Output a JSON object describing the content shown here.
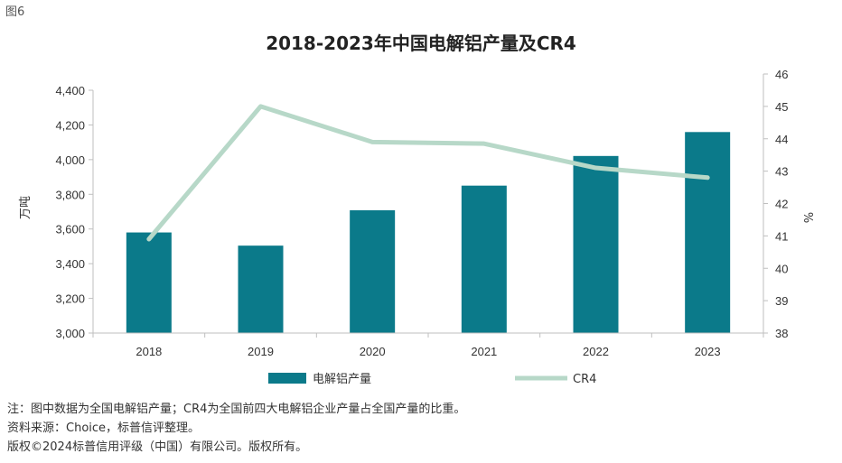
{
  "figure_label": "图6",
  "colors": {
    "bar": "#0b7a8a",
    "line": "#b7d8c8",
    "axis": "#bfbfbf"
  },
  "chart_data": {
    "type": "bar+line",
    "title": "2018-2023年中国电解铝产量及CR4",
    "categories": [
      "2018",
      "2019",
      "2020",
      "2021",
      "2022",
      "2023"
    ],
    "series": [
      {
        "name": "电解铝产量",
        "type": "bar",
        "axis": "left",
        "values": [
          3580,
          3504,
          3708,
          3850,
          4021,
          4159
        ]
      },
      {
        "name": "CR4",
        "type": "line",
        "axis": "right",
        "values": [
          40.9,
          45.0,
          43.9,
          43.85,
          43.1,
          42.8
        ]
      }
    ],
    "ylabel": "万吨",
    "ylim": [
      3000,
      4400
    ],
    "y_ticks": [
      "3,000",
      "3,200",
      "3,400",
      "3,600",
      "3,800",
      "4,000",
      "4,200",
      "4,400"
    ],
    "y2label": "%",
    "y2lim": [
      38,
      46
    ],
    "y2_ticks": [
      "38",
      "39",
      "40",
      "41",
      "42",
      "43",
      "44",
      "45",
      "46"
    ],
    "legend_position": "bottom",
    "grid": false
  },
  "notes": [
    "注：图中数据为全国电解铝产量；CR4为全国前四大电解铝企业产量占全国产量的比重。",
    "资料来源：Choice，标普信评整理。",
    "版权©2024标普信用评级（中国）有限公司。版权所有。"
  ]
}
